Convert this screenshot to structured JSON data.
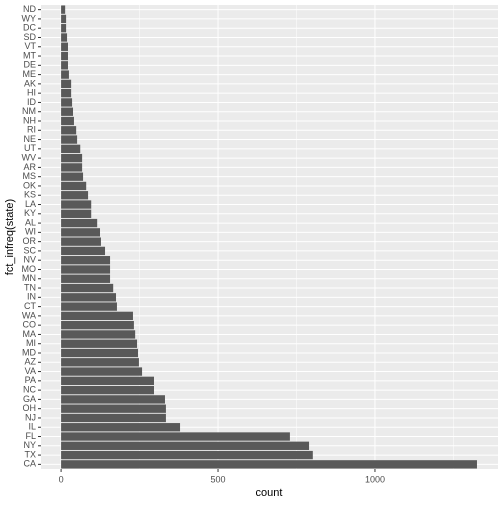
{
  "chart_data": {
    "type": "barh",
    "xlabel": "count",
    "ylabel": "fct_infreq(state)",
    "categories": [
      "CA",
      "TX",
      "NY",
      "FL",
      "IL",
      "NJ",
      "OH",
      "GA",
      "NC",
      "PA",
      "VA",
      "AZ",
      "MD",
      "MI",
      "MA",
      "CO",
      "WA",
      "CT",
      "IN",
      "TN",
      "MN",
      "MO",
      "NV",
      "SC",
      "OR",
      "WI",
      "AL",
      "KY",
      "LA",
      "KS",
      "OK",
      "MS",
      "AR",
      "WV",
      "UT",
      "NE",
      "RI",
      "NH",
      "NM",
      "ID",
      "HI",
      "AK",
      "ME",
      "DE",
      "MT",
      "VT",
      "SD",
      "DC",
      "WY",
      "ND"
    ],
    "values": [
      1325,
      802,
      790,
      729,
      379,
      334,
      334,
      331,
      296,
      296,
      258,
      248,
      245,
      242,
      236,
      232,
      229,
      178,
      175,
      166,
      156,
      156,
      156,
      140,
      127,
      124,
      115,
      96,
      96,
      86,
      80,
      70,
      67,
      67,
      61,
      51,
      48,
      41,
      38,
      35,
      32,
      32,
      25,
      22,
      22,
      22,
      19,
      16,
      16,
      13
    ],
    "color": "#595959",
    "xlim": [
      -64,
      1392
    ],
    "xticks": [
      0,
      500,
      1000
    ],
    "minor_xticks": [
      250,
      750,
      1250
    ],
    "grid": true
  }
}
